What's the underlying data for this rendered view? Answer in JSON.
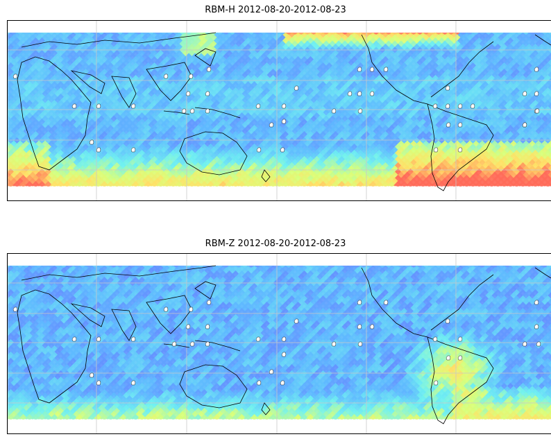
{
  "figure": {
    "panels": [
      {
        "id": "rbm-h",
        "title": "RBM-H 2012-08-20-2012-08-23"
      },
      {
        "id": "rbm-z",
        "title": "RBM-Z 2012-08-20-2012-08-23"
      }
    ]
  },
  "colors": {
    "low": "#6a6cff",
    "mid_low": "#5fb8ff",
    "mid": "#6ff0f0",
    "mid_high": "#d8ff7a",
    "high_yellow": "#ffe066",
    "high": "#ff6b5a",
    "grid": "#c8c8c8",
    "coast": "#000000"
  },
  "map": {
    "projection": "equirectangular",
    "coverage_lat_range": [
      -60,
      60
    ],
    "central_longitude": "indian-pacific",
    "graticule": true,
    "station_marker_icon": "white-blob-icon"
  }
}
